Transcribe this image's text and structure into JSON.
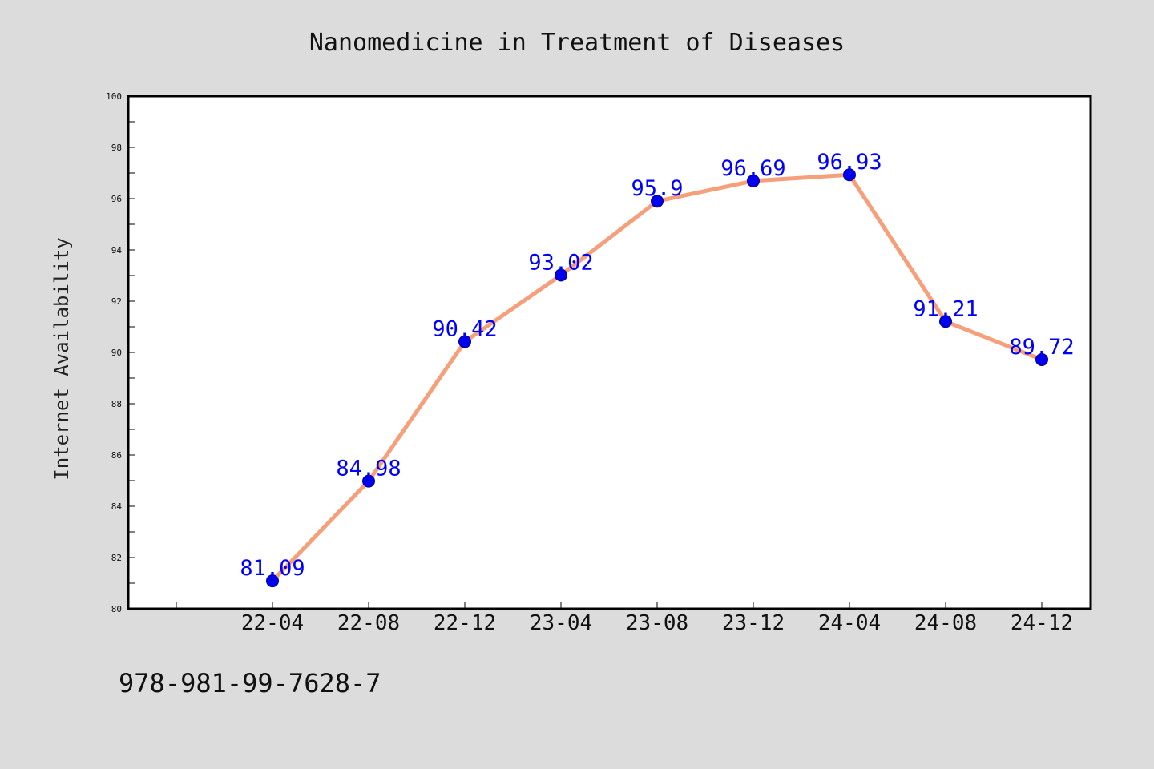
{
  "chart_data": {
    "type": "line",
    "title": "Nanomedicine in Treatment of Diseases",
    "xlabel": "",
    "ylabel": "Internet Availability",
    "categories": [
      "22-04",
      "22-08",
      "22-12",
      "23-04",
      "23-08",
      "23-12",
      "24-04",
      "24-08",
      "24-12"
    ],
    "series": [
      {
        "values": [
          81.09,
          84.98,
          90.42,
          93.02,
          95.9,
          96.69,
          96.93,
          91.21,
          89.72
        ]
      }
    ],
    "data_labels": [
      "81.09",
      "84.98",
      "90.42",
      "93.02",
      "95.9",
      "96.69",
      "96.93",
      "91.21",
      "89.72"
    ],
    "ylim": [
      80,
      100
    ],
    "yticks": [
      "80",
      "82",
      "84",
      "86",
      "88",
      "90",
      "92",
      "94",
      "96",
      "98",
      "100"
    ],
    "grid": false,
    "legend": "none",
    "colors": {
      "line": "#f5a07a",
      "marker": "#0000ee",
      "label": "#0000ff",
      "background": "#dcdcdc",
      "plot_background": "#ffffff"
    }
  },
  "footer_text": "978-981-99-7628-7"
}
